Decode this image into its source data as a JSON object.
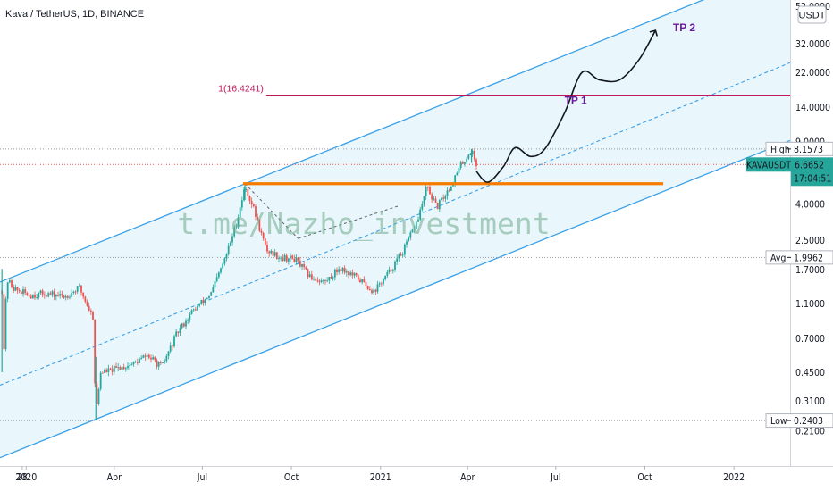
{
  "header": {
    "title": "Kava / TetherUS, 1D, BINANCE"
  },
  "currency_button": "USDT",
  "watermark": "t.me/Nazho_investment",
  "colors": {
    "channel": "#3aa0e8",
    "channel_fill": "#e5f6fb",
    "support": "#f57c00",
    "target": "#c2185b",
    "candle_up": "#26a69a",
    "candle_down": "#ef5350",
    "annotation": "#6a1b9a",
    "price_tag": "#26a69a"
  },
  "chart_data": {
    "type": "candlestick",
    "y_scale": "log",
    "ylim": [
      0.18,
      52
    ],
    "x_range": [
      "2019-12-05",
      "2022-02-28"
    ],
    "x_ticks": [
      {
        "label": "28",
        "date": "2019-12-28"
      },
      {
        "label": "2020",
        "date": "2020-01-01"
      },
      {
        "label": "Apr",
        "date": "2020-04-01"
      },
      {
        "label": "Jul",
        "date": "2020-07-01"
      },
      {
        "label": "Oct",
        "date": "2020-10-01"
      },
      {
        "label": "2021",
        "date": "2021-01-01"
      },
      {
        "label": "Apr",
        "date": "2021-04-01"
      },
      {
        "label": "Jul",
        "date": "2021-07-01"
      },
      {
        "label": "Oct",
        "date": "2021-10-01"
      },
      {
        "label": "2022",
        "date": "2022-01-01"
      }
    ],
    "y_ticks": [
      {
        "label": "52.0000",
        "value": 52
      },
      {
        "label": "32.0000",
        "value": 32
      },
      {
        "label": "22.0000",
        "value": 22
      },
      {
        "label": "14.0000",
        "value": 14
      },
      {
        "label": "9.0000",
        "value": 9
      },
      {
        "label": "4.0000",
        "value": 4
      },
      {
        "label": "2.5000",
        "value": 2.5
      },
      {
        "label": "1.7000",
        "value": 1.7
      },
      {
        "label": "1.1000",
        "value": 1.1
      },
      {
        "label": "0.7000",
        "value": 0.7
      },
      {
        "label": "0.4500",
        "value": 0.45
      },
      {
        "label": "0.3100",
        "value": 0.31
      },
      {
        "label": "0.2100",
        "value": 0.21
      }
    ],
    "price_markers": [
      {
        "name": "High",
        "label": "High",
        "value": 8.1573,
        "text": "8.1573"
      },
      {
        "name": "Avg",
        "label": "Avg",
        "value": 1.9962,
        "text": "1.9962"
      },
      {
        "name": "Low",
        "label": "Low",
        "value": 0.2403,
        "text": "0.2403"
      }
    ],
    "last_price": {
      "symbol": "KAVAUSDT",
      "value": 6.6652,
      "text": "6.6652",
      "countdown": "17:04:51"
    },
    "target_line": {
      "label": "1(16.4241)",
      "value": 16.4241,
      "from": "2020-09-05",
      "to": "2022-02-28"
    },
    "support_line": {
      "value": 5.2,
      "from": "2020-08-12",
      "to": "2021-10-20"
    },
    "channel": {
      "upper": [
        {
          "date": "2019-12-05",
          "value": 1.45
        },
        {
          "date": "2021-11-25",
          "value": 55
        }
      ],
      "lower": [
        {
          "date": "2019-12-20",
          "value": 0.16
        },
        {
          "date": "2022-02-28",
          "value": 9.1
        }
      ],
      "middle": [
        {
          "date": "2019-12-05",
          "value": 0.38
        },
        {
          "date": "2022-02-28",
          "value": 25
        }
      ]
    },
    "annotations": [
      {
        "text": "TP 1",
        "date": "2021-07-10",
        "value": 14.6
      },
      {
        "text": "TP 2",
        "date": "2021-10-30",
        "value": 37.5
      }
    ],
    "projection": [
      {
        "date": "2021-04-10",
        "value": 6.1
      },
      {
        "date": "2021-04-22",
        "value": 5.3
      },
      {
        "date": "2021-05-08",
        "value": 6.5
      },
      {
        "date": "2021-05-20",
        "value": 8.3
      },
      {
        "date": "2021-06-05",
        "value": 7.4
      },
      {
        "date": "2021-06-20",
        "value": 8.2
      },
      {
        "date": "2021-07-10",
        "value": 13
      },
      {
        "date": "2021-07-28",
        "value": 22
      },
      {
        "date": "2021-08-15",
        "value": 20
      },
      {
        "date": "2021-09-05",
        "value": 20
      },
      {
        "date": "2021-09-25",
        "value": 26
      },
      {
        "date": "2021-10-12",
        "value": 38
      }
    ],
    "price_path": [
      {
        "date": "2019-12-07",
        "value": 1.3
      },
      {
        "date": "2019-12-09",
        "value": 0.62
      },
      {
        "date": "2019-12-12",
        "value": 1.5
      },
      {
        "date": "2019-12-20",
        "value": 1.32
      },
      {
        "date": "2020-01-05",
        "value": 1.22
      },
      {
        "date": "2020-01-20",
        "value": 1.25
      },
      {
        "date": "2020-02-10",
        "value": 1.2
      },
      {
        "date": "2020-02-25",
        "value": 1.35
      },
      {
        "date": "2020-03-05",
        "value": 1.05
      },
      {
        "date": "2020-03-10",
        "value": 0.92
      },
      {
        "date": "2020-03-13",
        "value": 0.26
      },
      {
        "date": "2020-03-18",
        "value": 0.45
      },
      {
        "date": "2020-03-28",
        "value": 0.46
      },
      {
        "date": "2020-04-20",
        "value": 0.5
      },
      {
        "date": "2020-05-05",
        "value": 0.56
      },
      {
        "date": "2020-05-20",
        "value": 0.48
      },
      {
        "date": "2020-06-05",
        "value": 0.75
      },
      {
        "date": "2020-06-20",
        "value": 0.98
      },
      {
        "date": "2020-07-10",
        "value": 1.25
      },
      {
        "date": "2020-07-25",
        "value": 2.0
      },
      {
        "date": "2020-08-05",
        "value": 3.1
      },
      {
        "date": "2020-08-14",
        "value": 5.0
      },
      {
        "date": "2020-08-22",
        "value": 3.9
      },
      {
        "date": "2020-09-05",
        "value": 2.2
      },
      {
        "date": "2020-09-20",
        "value": 2.0
      },
      {
        "date": "2020-10-05",
        "value": 1.95
      },
      {
        "date": "2020-10-20",
        "value": 1.55
      },
      {
        "date": "2020-11-05",
        "value": 1.45
      },
      {
        "date": "2020-11-20",
        "value": 1.75
      },
      {
        "date": "2020-12-10",
        "value": 1.5
      },
      {
        "date": "2020-12-25",
        "value": 1.28
      },
      {
        "date": "2021-01-10",
        "value": 1.65
      },
      {
        "date": "2021-01-25",
        "value": 2.2
      },
      {
        "date": "2021-02-08",
        "value": 3.2
      },
      {
        "date": "2021-02-18",
        "value": 5.0
      },
      {
        "date": "2021-02-28",
        "value": 3.8
      },
      {
        "date": "2021-03-15",
        "value": 5.1
      },
      {
        "date": "2021-03-25",
        "value": 6.6
      },
      {
        "date": "2021-04-05",
        "value": 8.0
      },
      {
        "date": "2021-04-10",
        "value": 6.6652
      }
    ]
  }
}
